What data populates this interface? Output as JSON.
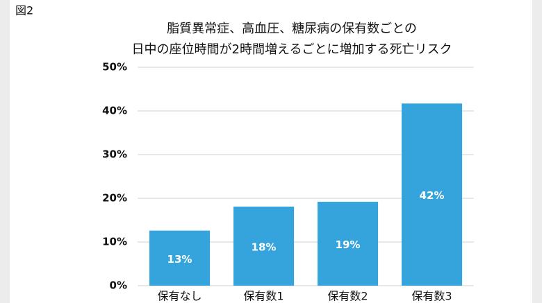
{
  "figure_label": "図2",
  "chart_data": {
    "type": "bar",
    "title_lines": [
      "脂質異常症、高血圧、糖尿病の保有数ごとの",
      "日中の座位時間が2時間増えるごとに増加する死亡リスク"
    ],
    "categories": [
      "保有なし",
      "保有数1",
      "保有数2",
      "保有数3"
    ],
    "values": [
      12.6,
      18.1,
      19.2,
      41.7
    ],
    "value_labels": [
      "13%",
      "18%",
      "19%",
      "42%"
    ],
    "color": "#35a4dc",
    "ylim": [
      0,
      50
    ],
    "yticks": [
      {
        "value": 0,
        "label": "0%"
      },
      {
        "value": 10,
        "label": "10%"
      },
      {
        "value": 20,
        "label": "20%"
      },
      {
        "value": 30,
        "label": "30%"
      },
      {
        "value": 40,
        "label": "40%"
      },
      {
        "value": 50,
        "label": "50%"
      }
    ],
    "grid": true
  }
}
